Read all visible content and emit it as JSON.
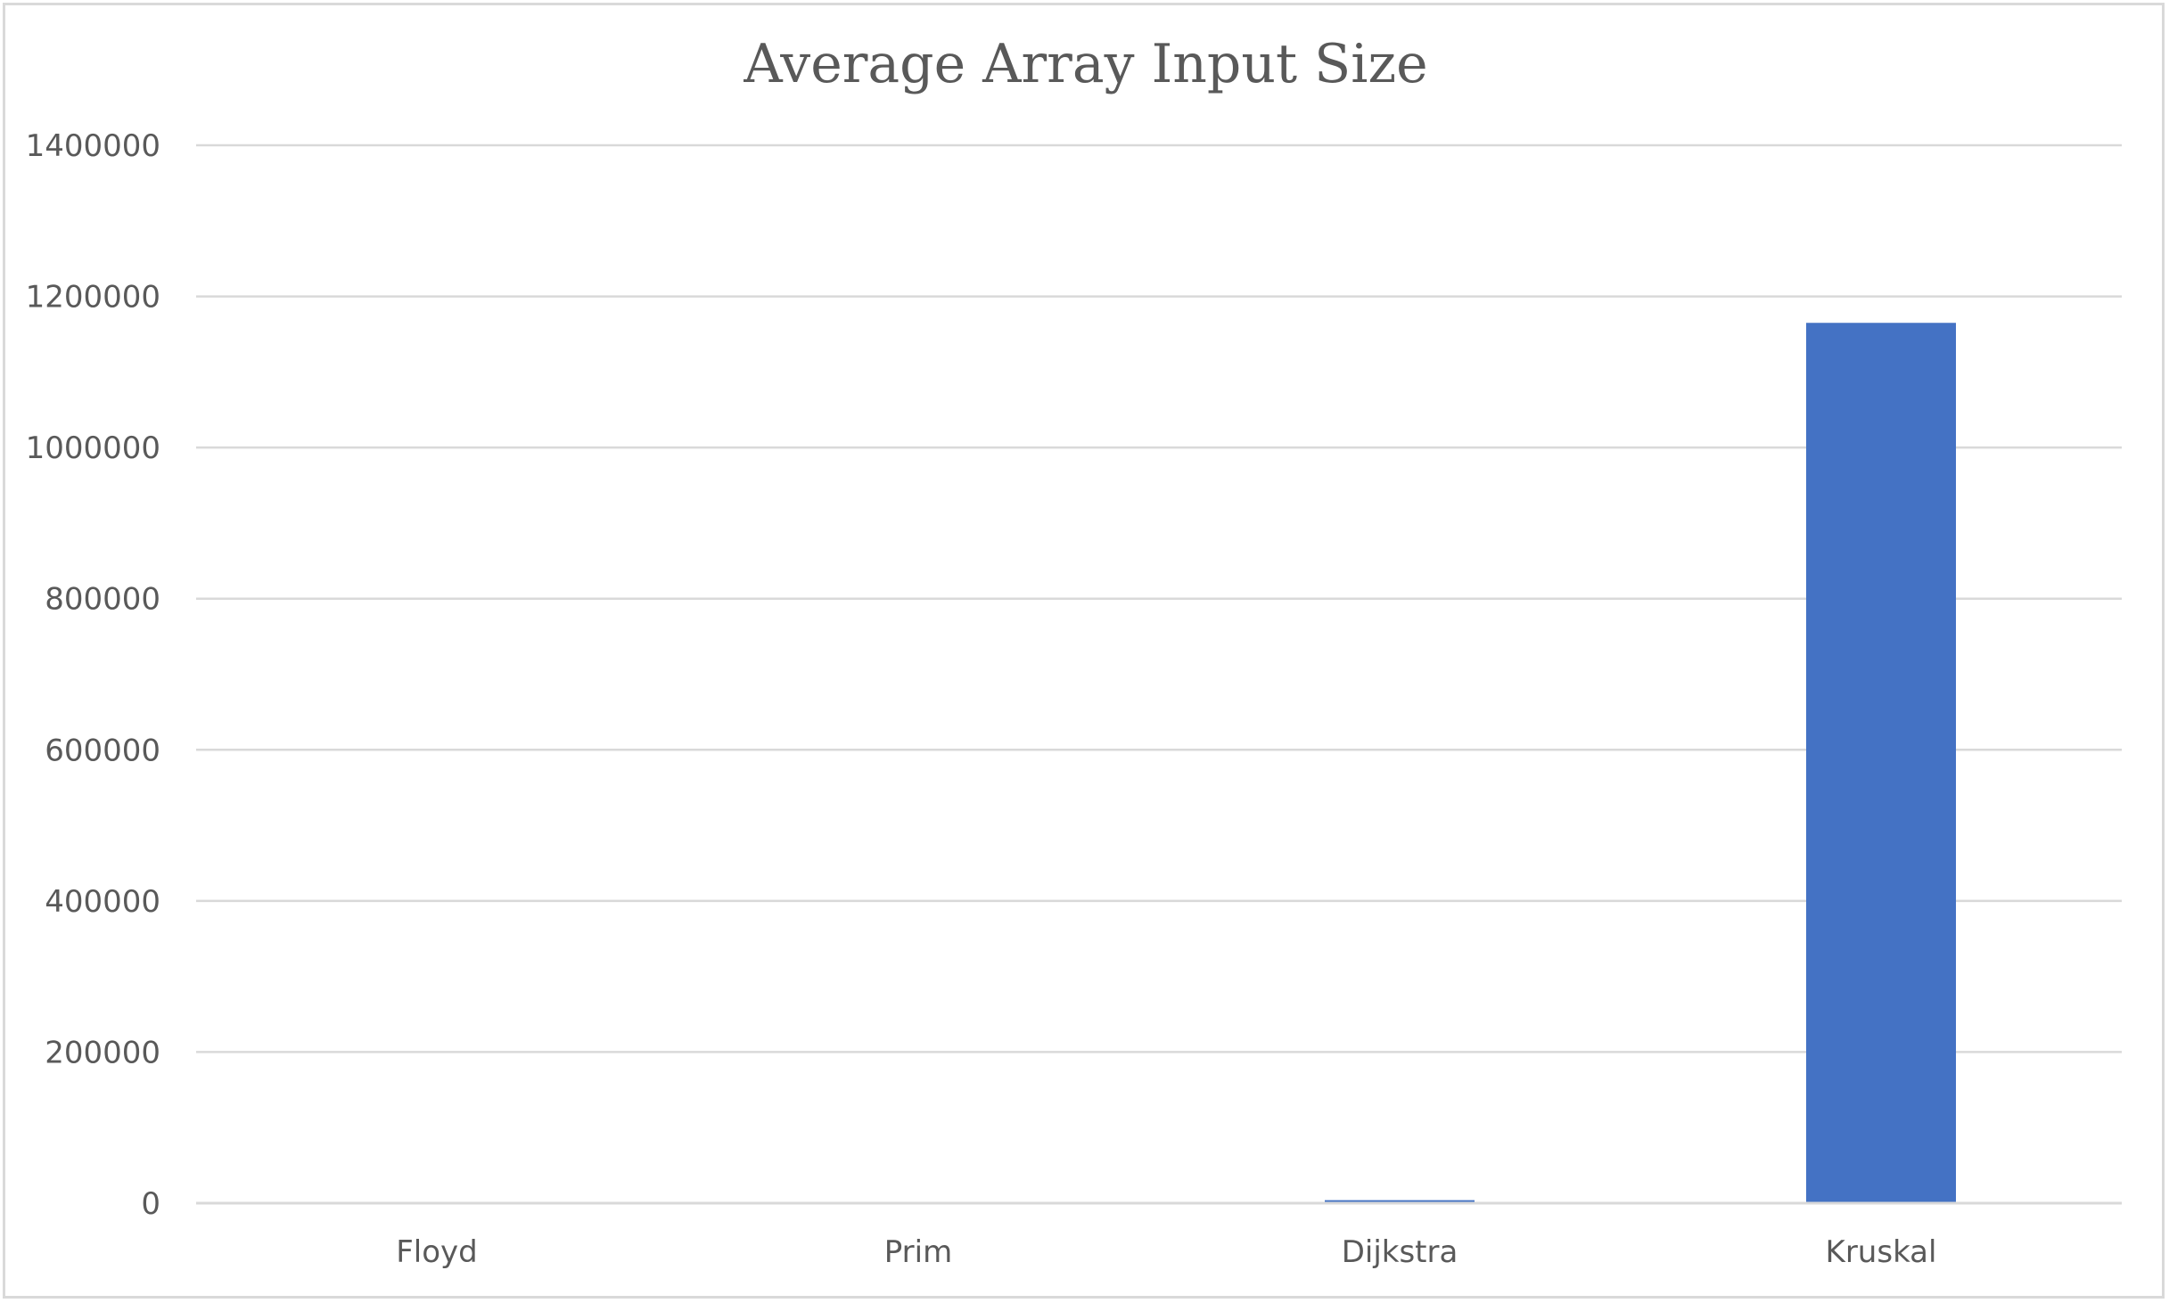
{
  "chart_data": {
    "type": "bar",
    "title": "Average Array Input Size",
    "xlabel": "",
    "ylabel": "",
    "categories": [
      "Floyd",
      "Prim",
      "Dijkstra",
      "Kruskal"
    ],
    "series": [
      {
        "values": [
          0,
          0,
          4000,
          1165000
        ]
      }
    ],
    "ylim": [
      0,
      1400000
    ],
    "yticks": [
      0,
      200000,
      400000,
      600000,
      800000,
      1000000,
      1200000,
      1400000
    ],
    "grid": true,
    "legend": "none",
    "bar_color": "#4472c4"
  }
}
